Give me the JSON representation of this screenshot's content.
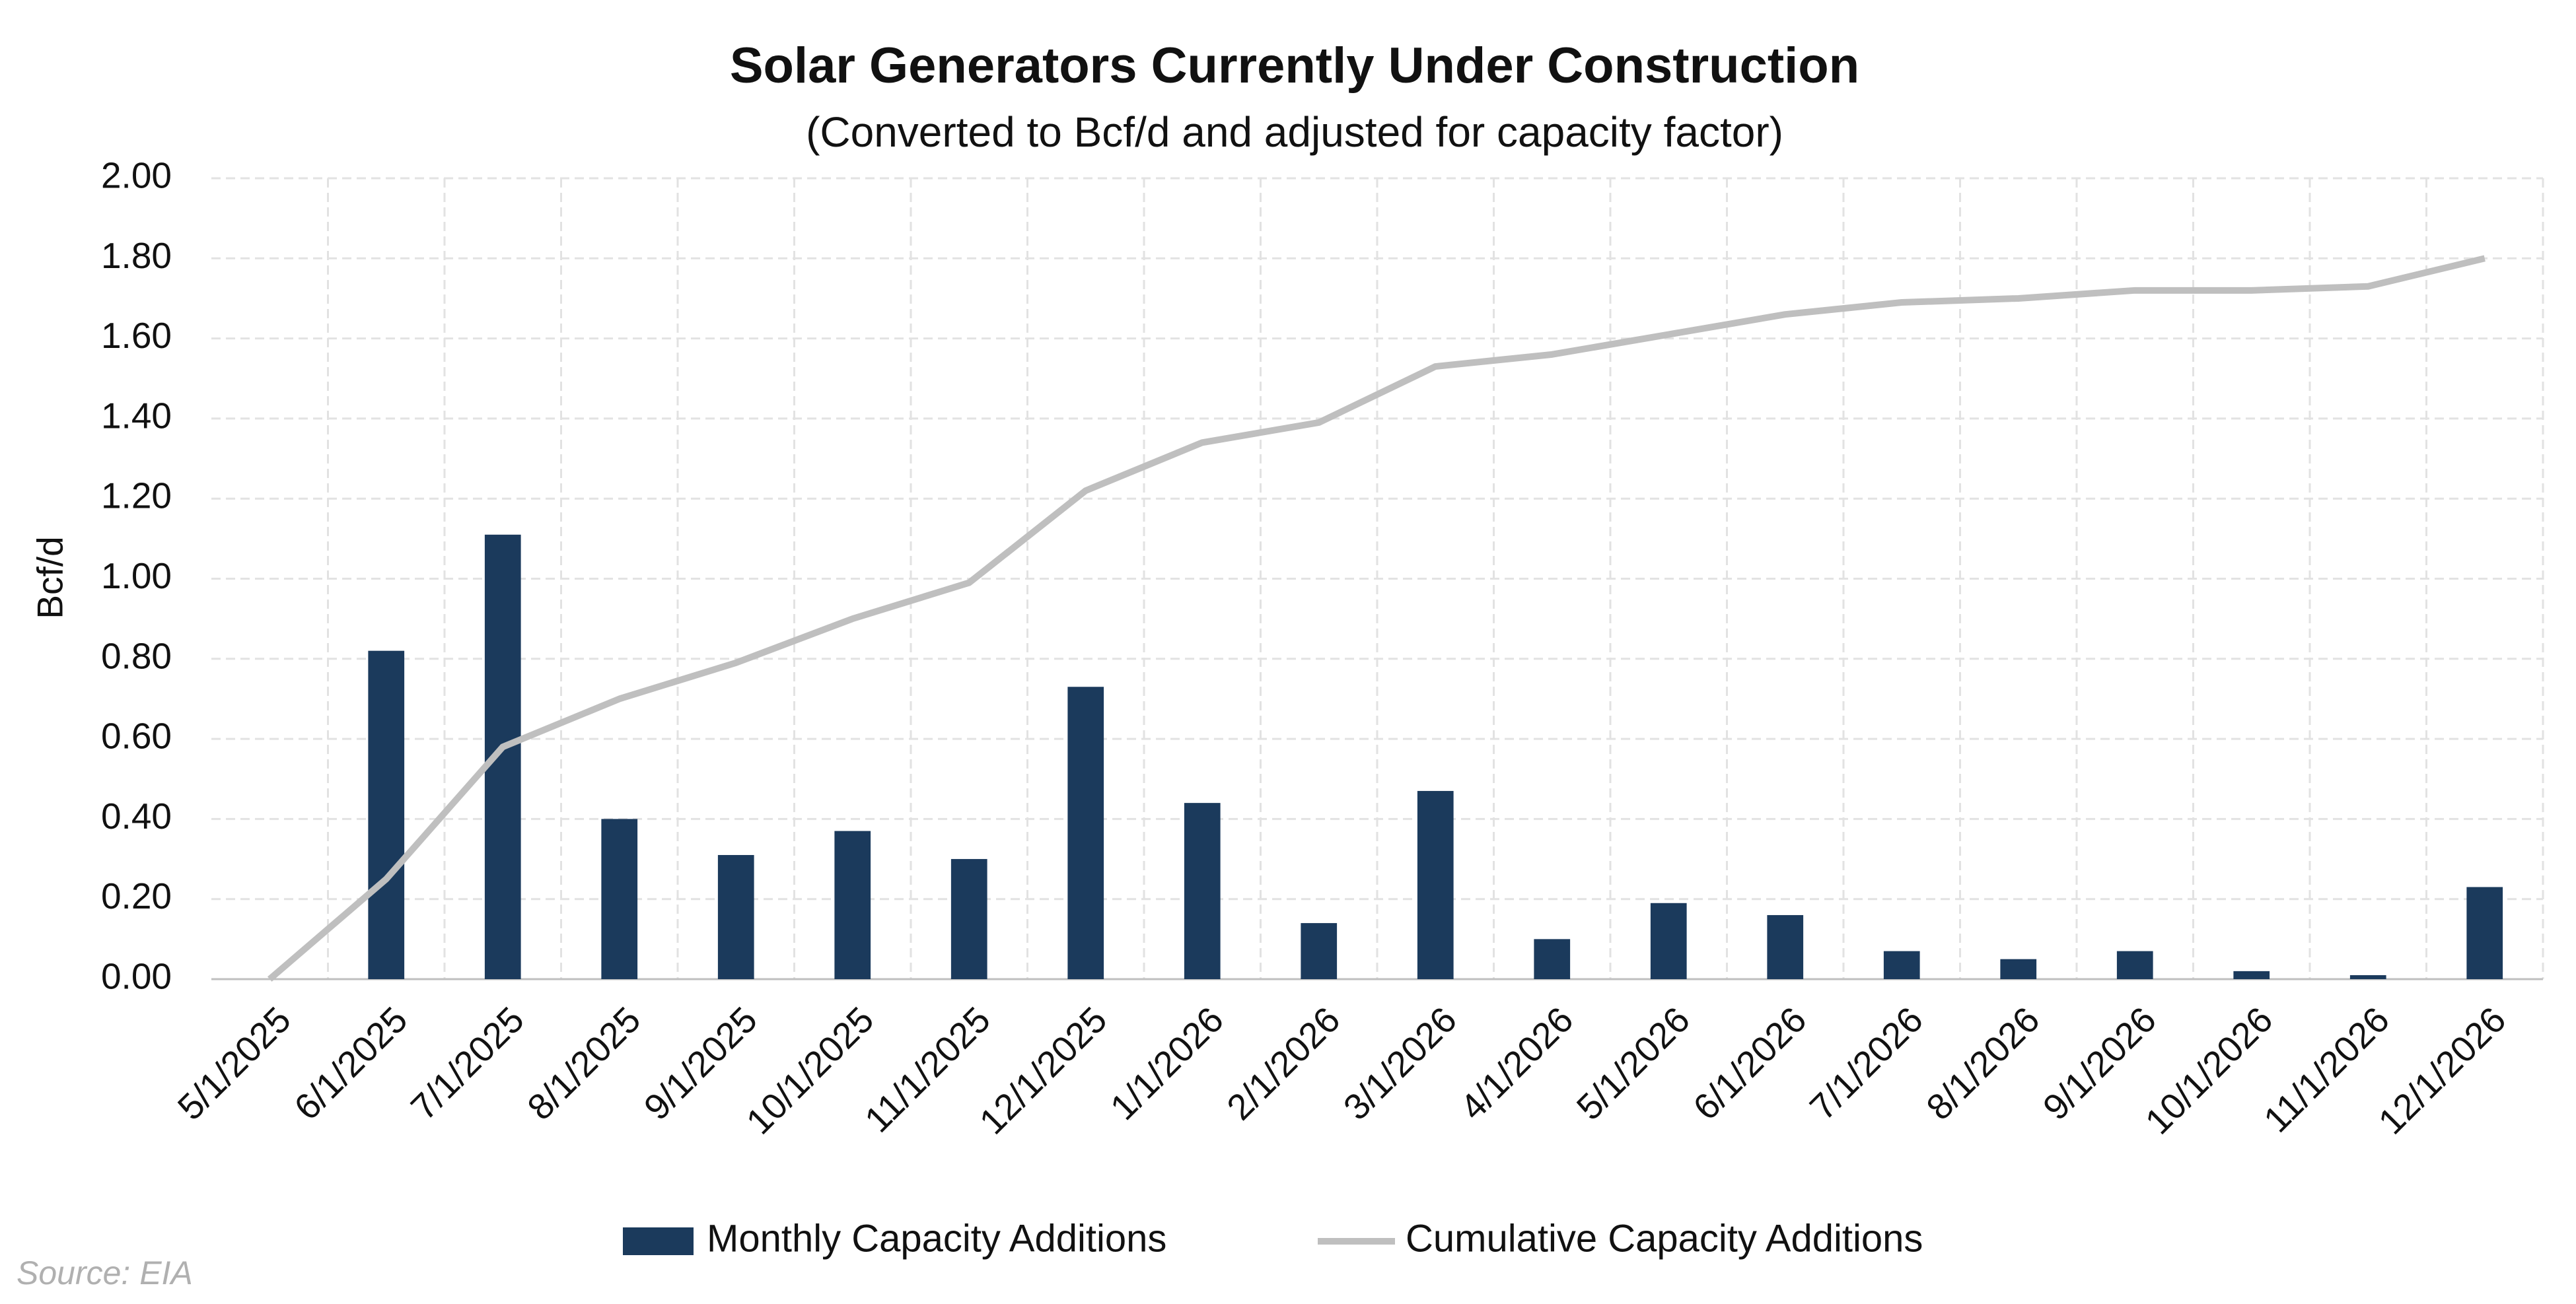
{
  "chart_data": {
    "type": "combo",
    "title": "Solar Generators Currently Under Construction",
    "subtitle": "(Converted to Bcf/d and adjusted for capacity factor)",
    "y_label": "Bcf/d",
    "source": "Source: EIA",
    "categories": [
      "5/1/2025",
      "6/1/2025",
      "7/1/2025",
      "8/1/2025",
      "9/1/2025",
      "10/1/2025",
      "11/1/2025",
      "12/1/2025",
      "1/1/2026",
      "2/1/2026",
      "3/1/2026",
      "4/1/2026",
      "5/1/2026",
      "6/1/2026",
      "7/1/2026",
      "8/1/2026",
      "9/1/2026",
      "10/1/2026",
      "11/1/2026",
      "12/1/2026"
    ],
    "series": [
      {
        "name": "Monthly Capacity Additions",
        "type": "bar",
        "color": "#1b3a5c",
        "values": [
          0,
          0.82,
          1.11,
          0.4,
          0.31,
          0.37,
          0.3,
          0.73,
          0.44,
          0.14,
          0.47,
          0.1,
          0.19,
          0.16,
          0.07,
          0.05,
          0.07,
          0.02,
          0.01,
          0.23
        ]
      },
      {
        "name": "Cumulative Capacity Additions",
        "type": "line",
        "color": "#bfbfbf",
        "values": [
          0,
          0.25,
          0.58,
          0.7,
          0.79,
          0.9,
          0.99,
          1.22,
          1.34,
          1.39,
          1.53,
          1.56,
          1.61,
          1.66,
          1.69,
          1.7,
          1.72,
          1.72,
          1.73,
          1.8
        ]
      }
    ],
    "ylim": [
      0,
      2
    ],
    "yticks": [
      {
        "value": 0,
        "label": "0.00"
      },
      {
        "value": 0.2,
        "label": "0.20"
      },
      {
        "value": 0.4,
        "label": "0.40"
      },
      {
        "value": 0.6,
        "label": "0.60"
      },
      {
        "value": 0.8,
        "label": "0.80"
      },
      {
        "value": 1,
        "label": "1.00"
      },
      {
        "value": 1.2,
        "label": "1.20"
      },
      {
        "value": 1.4,
        "label": "1.40"
      },
      {
        "value": 1.6,
        "label": "1.60"
      },
      {
        "value": 1.8,
        "label": "1.80"
      },
      {
        "value": 2,
        "label": "2.00"
      }
    ],
    "grid": true,
    "legend": "bottom"
  }
}
